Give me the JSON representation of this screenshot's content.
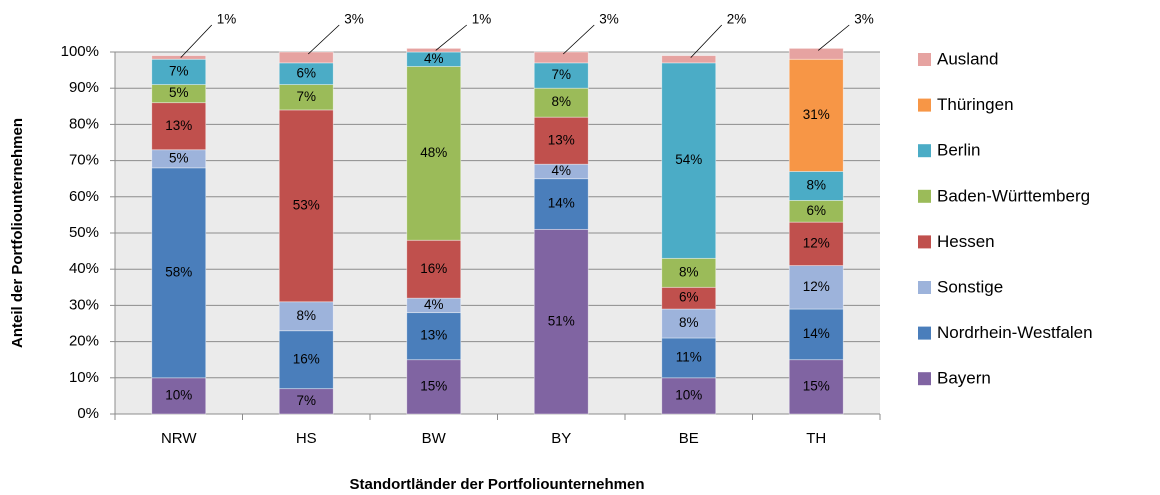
{
  "chart_data": {
    "type": "stacked_bar",
    "x_label": "Standortländer der Portfoliounternehmen",
    "y_label": "Anteil der Portfoliounternehmen",
    "categories": [
      "NRW",
      "HS",
      "BW",
      "BY",
      "BE",
      "TH"
    ],
    "ylim": [
      0,
      100
    ],
    "yticks": [
      {
        "value": 0,
        "label": "0%"
      },
      {
        "value": 10,
        "label": "10%"
      },
      {
        "value": 20,
        "label": "20%"
      },
      {
        "value": 30,
        "label": "30%"
      },
      {
        "value": 40,
        "label": "40%"
      },
      {
        "value": 50,
        "label": "50%"
      },
      {
        "value": 60,
        "label": "60%"
      },
      {
        "value": 70,
        "label": "70%"
      },
      {
        "value": 80,
        "label": "80%"
      },
      {
        "value": 90,
        "label": "90%"
      },
      {
        "value": 100,
        "label": "100%"
      }
    ],
    "grid": true,
    "legend": "right",
    "series": [
      {
        "name": "Bayern",
        "color": "#8064a2",
        "values": [
          10,
          7,
          15,
          51,
          10,
          15
        ],
        "value_labels": [
          "10%",
          "7%",
          "15%",
          "51%",
          "10%",
          "15%"
        ]
      },
      {
        "name": "Nordrhein-Westfalen",
        "color": "#4a7ebb",
        "values": [
          58,
          16,
          13,
          14,
          11,
          14
        ],
        "value_labels": [
          "58%",
          "16%",
          "13%",
          "14%",
          "11%",
          "14%"
        ]
      },
      {
        "name": "Sonstige",
        "color": "#9db3db",
        "values": [
          5,
          8,
          4,
          4,
          8,
          12
        ],
        "value_labels": [
          "5%",
          "8%",
          "4%",
          "4%",
          "8%",
          "12%"
        ]
      },
      {
        "name": "Hessen",
        "color": "#c0504d",
        "values": [
          13,
          53,
          16,
          13,
          6,
          12
        ],
        "value_labels": [
          "13%",
          "53%",
          "16%",
          "13%",
          "6%",
          "12%"
        ]
      },
      {
        "name": "Baden-Württemberg",
        "color": "#9bbb59",
        "values": [
          5,
          7,
          48,
          8,
          8,
          6
        ],
        "value_labels": [
          "5%",
          "7%",
          "48%",
          "8%",
          "8%",
          "6%"
        ]
      },
      {
        "name": "Berlin",
        "color": "#4bacc6",
        "values": [
          7,
          6,
          4,
          7,
          54,
          8
        ],
        "value_labels": [
          "7%",
          "6%",
          "4%",
          "7%",
          "54%",
          "8%"
        ]
      },
      {
        "name": "Thüringen",
        "color": "#f79646",
        "values": [
          null,
          null,
          null,
          null,
          null,
          31
        ],
        "value_labels": [
          null,
          null,
          null,
          null,
          null,
          "31%"
        ]
      },
      {
        "name": "Ausland",
        "color": "#e6a3a1",
        "values": [
          1,
          3,
          1,
          3,
          2,
          3
        ],
        "value_labels": [
          "1%",
          "3%",
          "1%",
          "3%",
          "2%",
          "3%"
        ],
        "outside_labels": true
      }
    ]
  }
}
